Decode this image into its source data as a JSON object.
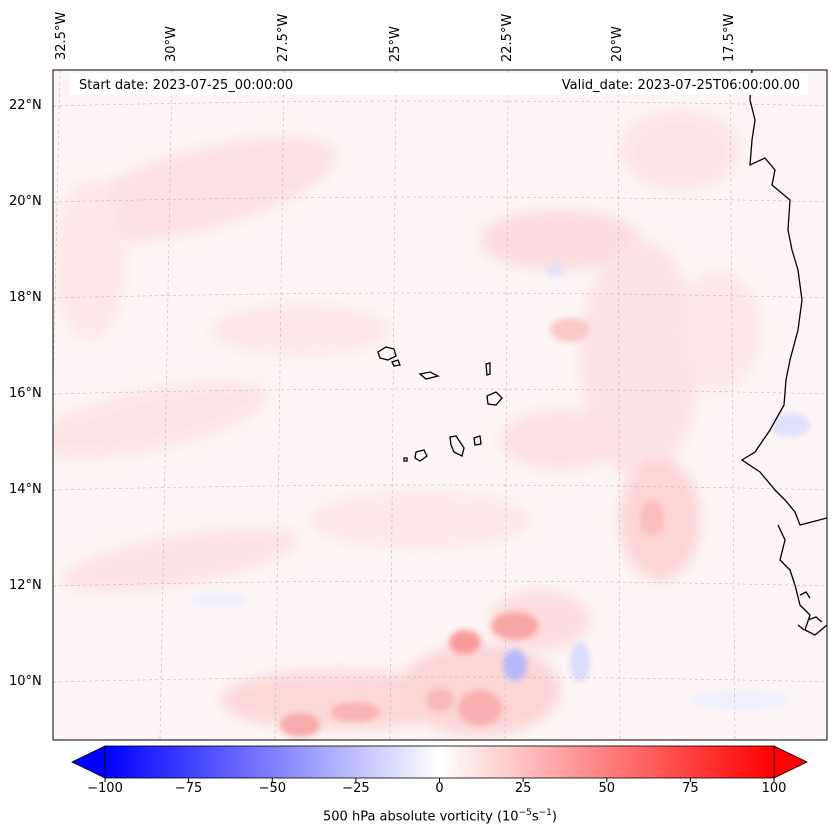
{
  "header": {
    "start_date": "Start date: 2023-07-25_00:00:00",
    "valid_date": "Valid_date: 2023-07-25T06:00:00.00"
  },
  "map": {
    "longitude_labels": [
      "32.5°W",
      "30°W",
      "27.5°W",
      "25°W",
      "22.5°W",
      "20°W",
      "17.5°W"
    ],
    "latitude_labels": [
      "22°N",
      "20°N",
      "18°N",
      "16°N",
      "14°N",
      "12°N",
      "10°N"
    ],
    "field_colors": {
      "positive": "#ff0000",
      "negative": "#0000ff",
      "zero": "#ffffff"
    },
    "coastline_color": "#000000"
  },
  "colorbar": {
    "ticks": [
      "−100",
      "−75",
      "−50",
      "−25",
      "0",
      "25",
      "50",
      "75",
      "100"
    ],
    "min": -100,
    "max": 100,
    "label": "500 hPa absolute vorticity (10",
    "label_exp1": "−5",
    "label_mid": "s",
    "label_exp2": "−1",
    "label_end": ")"
  }
}
